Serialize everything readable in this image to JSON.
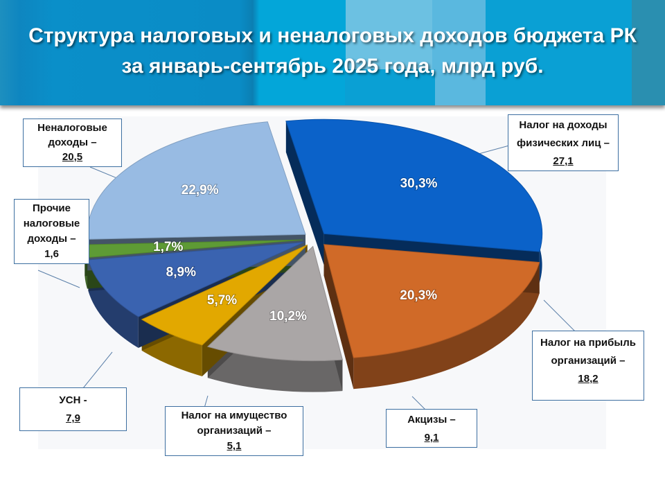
{
  "header": {
    "title_line1": "Структура налоговых и неналоговых доходов бюджета РК",
    "title_line2": "за январь-сентябрь  2025 года, млрд руб."
  },
  "chart_data": {
    "type": "pie",
    "style": "3d-exploded",
    "title": "Структура налоговых и неналоговых доходов бюджета РК за январь-сентябрь  2025 года, млрд руб.",
    "slices": [
      {
        "label": "Налог на доходы физических лиц",
        "sep": " –  ",
        "value": 27.1,
        "value_text": "27,1",
        "percent": "30,3%",
        "color": "#0b62c9"
      },
      {
        "label": "Налог на прибыль организаций",
        "sep": " –",
        "value": 18.2,
        "value_text": "18,2",
        "percent": "20,3%",
        "color": "#d06a28"
      },
      {
        "label": "Акцизы",
        "sep": " –",
        "value": 9.1,
        "value_text": "9,1",
        "percent": "10,2%",
        "color": "#aaa6a6"
      },
      {
        "label": "Налог на имущество организаций",
        "sep": " –",
        "value": 5.1,
        "value_text": "5,1",
        "percent": "5,7%",
        "color": "#e2a800"
      },
      {
        "label": "УСН",
        "sep": " -",
        "value": 7.9,
        "value_text": "7,9",
        "percent": "8,9%",
        "color": "#3a63b0"
      },
      {
        "label": "Прочие налоговые доходы",
        "sep": " –",
        "value": 1.6,
        "value_text": "1,6",
        "percent": "1,7%",
        "color": "#5e9b35"
      },
      {
        "label": "Неналоговые доходы",
        "sep": " –",
        "value": 20.5,
        "value_text": "20,5",
        "percent": "22,9%",
        "color": "#98bbe3"
      }
    ]
  }
}
